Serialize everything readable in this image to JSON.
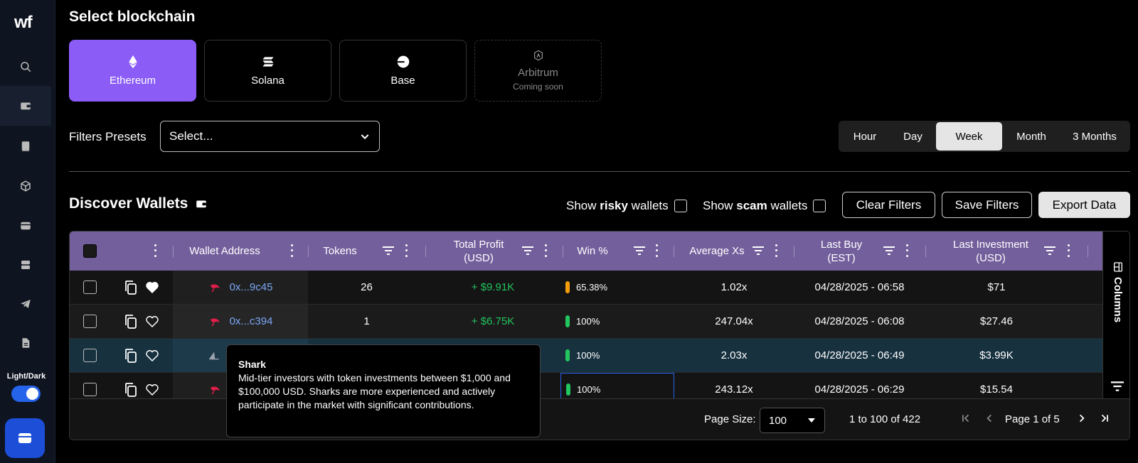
{
  "app": {
    "logo": "wf",
    "theme_label": "Light/Dark"
  },
  "sidebar": {
    "icons": [
      "search-icon",
      "wallet-icon",
      "book-icon",
      "cube-icon",
      "card-icon",
      "server-icon",
      "telegram-icon",
      "document-icon"
    ]
  },
  "blockchain": {
    "title": "Select blockchain",
    "options": [
      {
        "label": "Ethereum",
        "sub": "",
        "icon": "ethereum-icon",
        "state": "selected"
      },
      {
        "label": "Solana",
        "sub": "",
        "icon": "solana-icon",
        "state": "normal"
      },
      {
        "label": "Base",
        "sub": "",
        "icon": "base-icon",
        "state": "normal"
      },
      {
        "label": "Arbitrum",
        "sub": "Coming soon",
        "icon": "arbitrum-icon",
        "state": "disabled"
      }
    ]
  },
  "filters": {
    "label": "Filters Presets",
    "placeholder": "Select..."
  },
  "timeframes": {
    "options": [
      "Hour",
      "Day",
      "Week",
      "Month",
      "3 Months"
    ],
    "selected": "Week"
  },
  "discover": {
    "title": "Discover Wallets",
    "show_risky_pre": "Show ",
    "show_risky_bold": "risky",
    "show_risky_post": " wallets",
    "show_scam_pre": "Show ",
    "show_scam_bold": "scam",
    "show_scam_post": " wallets",
    "clear_filters": "Clear Filters",
    "save_filters": "Save Filters",
    "export_data": "Export Data"
  },
  "table": {
    "headers": {
      "wallet_address": "Wallet Address",
      "tokens": "Tokens",
      "total_profit_1": "Total Profit",
      "total_profit_2": "(USD)",
      "win": "Win %",
      "avg_xs": "Average Xs",
      "last_buy_1": "Last Buy",
      "last_buy_2": "(EST)",
      "last_inv_1": "Last Investment",
      "last_inv_2": "(USD)"
    },
    "columns_panel": "Columns",
    "rows": [
      {
        "address": "0x...9c45",
        "tokens": "26",
        "profit": "+ $9.91K",
        "win": "65.38%",
        "win_color": "#f59e0b",
        "avg_xs": "1.02x",
        "last_buy": "04/28/2025 - 06:58",
        "last_inv": "$71",
        "favorited": true,
        "tier_icon": "shrimp-icon"
      },
      {
        "address": "0x...c394",
        "tokens": "1",
        "profit": "+ $6.75K",
        "win": "100%",
        "win_color": "#22c55e",
        "avg_xs": "247.04x",
        "last_buy": "04/28/2025 - 06:08",
        "last_inv": "$27.46",
        "favorited": false,
        "tier_icon": "shrimp-icon"
      },
      {
        "address": "",
        "tokens": "",
        "profit": "",
        "win": "100%",
        "win_color": "#22c55e",
        "avg_xs": "2.03x",
        "last_buy": "04/28/2025 - 06:49",
        "last_inv": "$3.99K",
        "favorited": false,
        "tier_icon": "shark-icon"
      },
      {
        "address": "",
        "tokens": "",
        "profit": "",
        "win": "100%",
        "win_color": "#22c55e",
        "avg_xs": "243.12x",
        "last_buy": "04/28/2025 - 06:29",
        "last_inv": "$15.54",
        "favorited": false,
        "tier_icon": "shrimp-icon"
      }
    ],
    "footer": {
      "page_size_label": "Page Size:",
      "page_size": "100",
      "range": "1 to 100 of 422",
      "page_info": "Page 1 of 5"
    }
  },
  "tooltip": {
    "title": "Shark",
    "body": "Mid-tier investors with token investments between $1,000 and $100,000 USD. Sharks are more experienced and actively participate in the market with significant contributions."
  }
}
